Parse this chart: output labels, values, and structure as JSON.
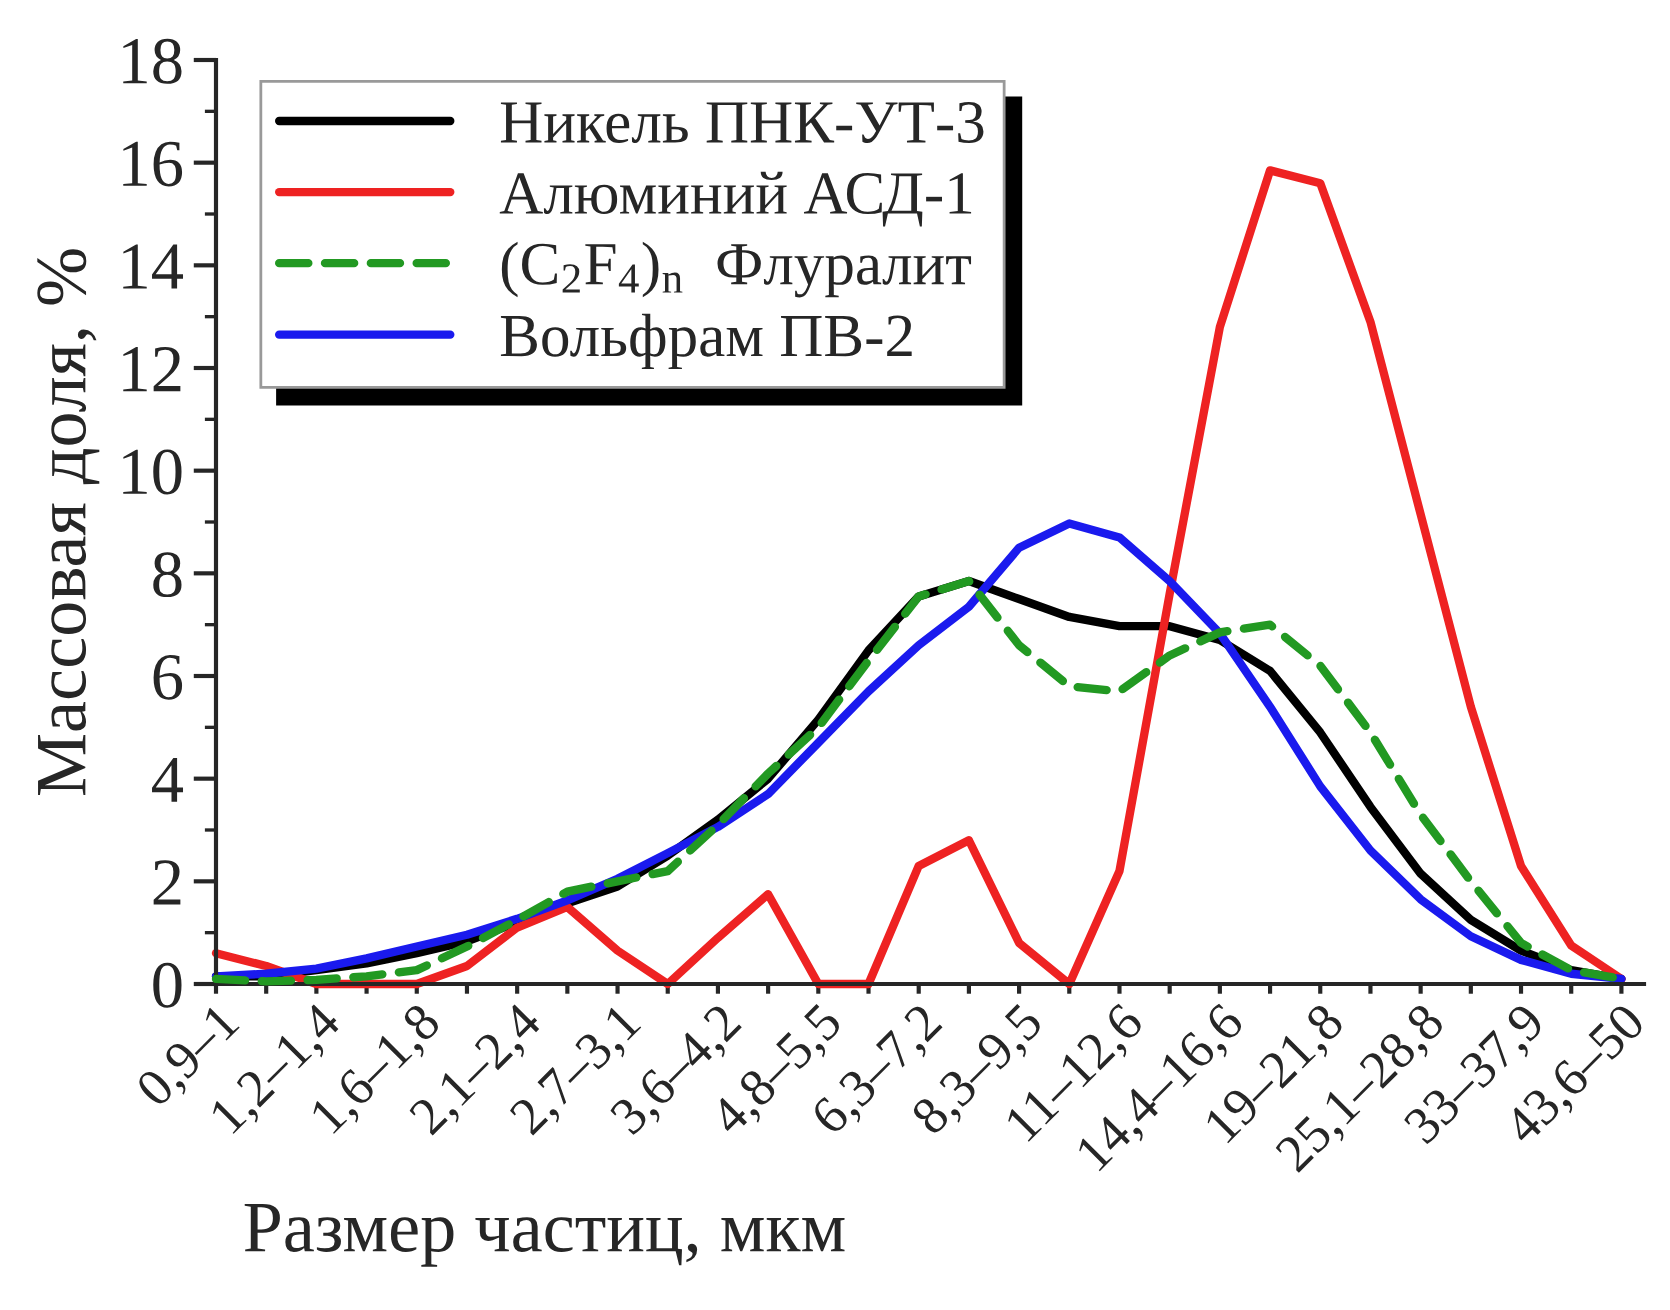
{
  "chart_data": {
    "type": "line",
    "xlabel": "Размер частиц, мкм",
    "ylabel": "Массовая доля, %",
    "categories": [
      "0,9–1",
      null,
      "1,2–1,4",
      null,
      "1,6–1,8",
      null,
      "2,1–2,4",
      null,
      "2,7–3,1",
      null,
      "3,6–4,2",
      null,
      "4,8–5,5",
      null,
      "6,3–7,2",
      null,
      "8,3–9,5",
      null,
      "11–12,6",
      null,
      "14,4–16,6",
      null,
      "19–21,8",
      null,
      "25,1–28,8",
      null,
      "33–37,9",
      null,
      "43,6–50"
    ],
    "ylim": [
      0,
      18
    ],
    "yticks": [
      0,
      2,
      4,
      6,
      8,
      10,
      12,
      14,
      16,
      18
    ],
    "legend": "top left",
    "grid": false,
    "series": [
      {
        "name": "Никель ПНК-УТ-3",
        "color": "#000000",
        "line_style": "solid",
        "values": [
          0.15,
          0.15,
          0.27,
          0.4,
          0.6,
          0.83,
          1.2,
          1.57,
          1.9,
          2.5,
          3.2,
          4.0,
          5.15,
          6.5,
          7.55,
          7.85,
          7.5,
          7.15,
          6.97,
          6.97,
          6.7,
          6.1,
          4.9,
          3.45,
          2.15,
          1.25,
          0.65,
          0.27,
          0.1
        ]
      },
      {
        "name": "Алюминий АСД-1",
        "color": "#ee2222",
        "line_style": "solid",
        "values": [
          0.6,
          0.35,
          0,
          0,
          0,
          0.35,
          1.1,
          1.5,
          0.65,
          0,
          0.9,
          1.75,
          0,
          0,
          2.3,
          2.8,
          0.8,
          0,
          2.2,
          7.6,
          12.8,
          15.85,
          15.6,
          12.9,
          9.15,
          5.4,
          2.3,
          0.75,
          0.1
        ]
      },
      {
        "name": "(C$_{2}$F$_{4}$)$_{n}$  Флуралит",
        "color": "#229922",
        "line_style": "dashed",
        "values": [
          0.1,
          0.05,
          0.08,
          0.15,
          0.27,
          0.73,
          1.25,
          1.8,
          2.0,
          2.2,
          3.1,
          4.1,
          5.0,
          6.3,
          7.55,
          7.85,
          6.6,
          5.8,
          5.7,
          6.4,
          6.85,
          7.0,
          6.2,
          4.9,
          3.3,
          2.0,
          0.8,
          0.27,
          0.1
        ]
      },
      {
        "name": "Вольфрам ПВ-2",
        "color": "#1a1aee",
        "line_style": "solid",
        "values": [
          0.15,
          0.2,
          0.3,
          0.5,
          0.73,
          0.96,
          1.27,
          1.63,
          2.05,
          2.55,
          3.06,
          3.7,
          4.7,
          5.7,
          6.6,
          7.35,
          8.5,
          8.97,
          8.7,
          7.85,
          6.83,
          5.4,
          3.85,
          2.6,
          1.65,
          0.93,
          0.47,
          0.2,
          0.1
        ]
      }
    ]
  }
}
